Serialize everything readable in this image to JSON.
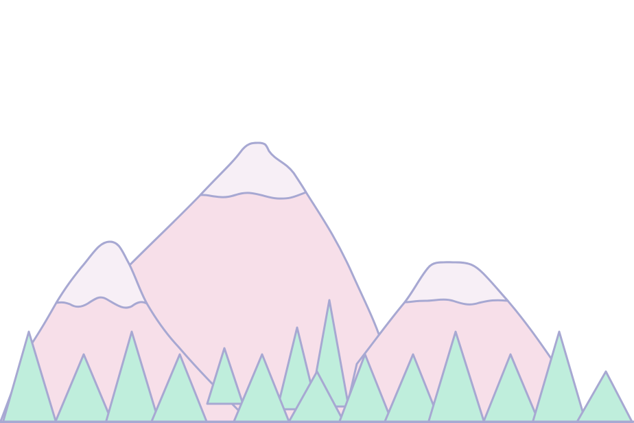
{
  "colors": {
    "background": "#ffffff",
    "mountain_fill": "#f7dfe9",
    "snow_fill": "#f7eff6",
    "tree_fill": "#bfeedc",
    "outline": "#a7a8d2"
  }
}
